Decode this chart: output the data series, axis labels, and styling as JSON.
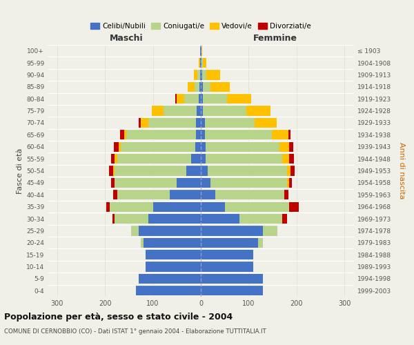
{
  "age_groups": [
    "0-4",
    "5-9",
    "10-14",
    "15-19",
    "20-24",
    "25-29",
    "30-34",
    "35-39",
    "40-44",
    "45-49",
    "50-54",
    "55-59",
    "60-64",
    "65-69",
    "70-74",
    "75-79",
    "80-84",
    "85-89",
    "90-94",
    "95-99",
    "100+"
  ],
  "birth_years": [
    "1999-2003",
    "1994-1998",
    "1989-1993",
    "1984-1988",
    "1979-1983",
    "1974-1978",
    "1969-1973",
    "1964-1968",
    "1959-1963",
    "1954-1958",
    "1949-1953",
    "1944-1948",
    "1939-1943",
    "1934-1938",
    "1929-1933",
    "1924-1928",
    "1919-1923",
    "1914-1918",
    "1909-1913",
    "1904-1908",
    "≤ 1903"
  ],
  "colors": {
    "celibi": "#4472c4",
    "coniugati": "#b8d48b",
    "vedovi": "#ffc000",
    "divorziati": "#c00000"
  },
  "maschi": {
    "celibi": [
      135,
      130,
      115,
      115,
      120,
      130,
      110,
      100,
      65,
      50,
      30,
      20,
      12,
      10,
      10,
      8,
      5,
      3,
      2,
      1,
      1
    ],
    "coniugati": [
      0,
      0,
      0,
      0,
      5,
      15,
      70,
      90,
      110,
      130,
      150,
      155,
      155,
      145,
      100,
      70,
      30,
      10,
      5,
      1,
      0
    ],
    "vedovi": [
      0,
      0,
      0,
      0,
      0,
      0,
      0,
      0,
      0,
      0,
      3,
      5,
      5,
      5,
      15,
      25,
      15,
      15,
      8,
      2,
      0
    ],
    "divorziati": [
      0,
      0,
      0,
      0,
      0,
      0,
      5,
      8,
      8,
      8,
      8,
      8,
      10,
      8,
      5,
      0,
      3,
      0,
      0,
      0,
      0
    ]
  },
  "femmine": {
    "celibi": [
      130,
      130,
      110,
      110,
      120,
      130,
      80,
      50,
      30,
      20,
      15,
      10,
      10,
      8,
      8,
      5,
      5,
      5,
      3,
      2,
      1
    ],
    "coniugati": [
      0,
      0,
      0,
      0,
      10,
      30,
      90,
      135,
      145,
      160,
      165,
      160,
      155,
      140,
      105,
      90,
      50,
      15,
      8,
      2,
      0
    ],
    "vedovi": [
      0,
      0,
      0,
      0,
      0,
      0,
      0,
      0,
      0,
      5,
      8,
      15,
      20,
      35,
      45,
      50,
      50,
      40,
      30,
      8,
      2
    ],
    "divorziati": [
      0,
      0,
      0,
      0,
      0,
      0,
      10,
      20,
      8,
      5,
      8,
      10,
      8,
      5,
      0,
      0,
      0,
      0,
      0,
      0,
      0
    ]
  },
  "xlim": 320,
  "title": "Popolazione per età, sesso e stato civile - 2004",
  "subtitle": "COMUNE DI CERNOBBIO (CO) - Dati ISTAT 1° gennaio 2004 - Elaborazione TUTTITALIA.IT",
  "ylabel_left": "Fasce di età",
  "ylabel_right": "Anni di nascita",
  "xlabel_maschi": "Maschi",
  "xlabel_femmine": "Femmine",
  "background_color": "#f0f0e8",
  "legend_labels": [
    "Celibi/Nubili",
    "Coniugati/e",
    "Vedovi/e",
    "Divorziati/e"
  ]
}
